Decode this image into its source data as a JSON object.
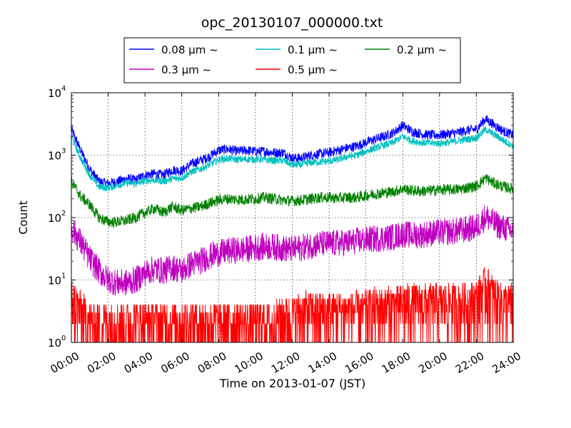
{
  "chart_data": {
    "type": "line",
    "title": "opc_20130107_000000.txt",
    "xlabel": "Time on 2013-01-07 (JST)",
    "ylabel": "Count",
    "x_ticks": [
      "00:00",
      "02:00",
      "04:00",
      "06:00",
      "08:00",
      "10:00",
      "12:00",
      "14:00",
      "16:00",
      "18:00",
      "20:00",
      "22:00",
      "24:00"
    ],
    "y_ticks": [
      {
        "base": "10",
        "exp": "0"
      },
      {
        "base": "10",
        "exp": "1"
      },
      {
        "base": "10",
        "exp": "2"
      },
      {
        "base": "10",
        "exp": "3"
      },
      {
        "base": "10",
        "exp": "4"
      }
    ],
    "xlim_hours": [
      0,
      24
    ],
    "ylim": [
      1,
      10000
    ],
    "yscale": "log",
    "grid": true,
    "legend_placement": "top-center",
    "legend_ncol": 3,
    "series": [
      {
        "name": "0.08 μm ~",
        "color": "#0000ff",
        "x": [
          0,
          0.5,
          1,
          1.5,
          2,
          2.5,
          3,
          3.5,
          4,
          4.5,
          5,
          5.5,
          6,
          6.5,
          7,
          7.5,
          8,
          8.5,
          9,
          9.5,
          10,
          10.5,
          11,
          11.5,
          12,
          12.5,
          13,
          13.5,
          14,
          14.5,
          15,
          15.5,
          16,
          16.5,
          17,
          17.5,
          18,
          18.5,
          19,
          19.5,
          20,
          20.5,
          21,
          21.5,
          22,
          22.5,
          23,
          23.5,
          24
        ],
        "values": [
          2600,
          1200,
          600,
          380,
          350,
          380,
          420,
          400,
          480,
          500,
          480,
          580,
          560,
          720,
          820,
          950,
          1200,
          1250,
          1150,
          1200,
          1150,
          1150,
          1100,
          1100,
          900,
          900,
          1000,
          1050,
          1100,
          1200,
          1300,
          1400,
          1600,
          1800,
          2000,
          2300,
          3000,
          2400,
          2200,
          2100,
          2100,
          2200,
          2300,
          2500,
          2600,
          3800,
          3000,
          2400,
          2100
        ]
      },
      {
        "name": "0.1 μm ~",
        "color": "#00bfbf",
        "x": [
          0,
          0.5,
          1,
          1.5,
          2,
          2.5,
          3,
          3.5,
          4,
          4.5,
          5,
          5.5,
          6,
          6.5,
          7,
          7.5,
          8,
          8.5,
          9,
          9.5,
          10,
          10.5,
          11,
          11.5,
          12,
          12.5,
          13,
          13.5,
          14,
          14.5,
          15,
          15.5,
          16,
          16.5,
          17,
          17.5,
          18,
          18.5,
          19,
          19.5,
          20,
          20.5,
          21,
          21.5,
          22,
          22.5,
          23,
          23.5,
          24
        ],
        "values": [
          2000,
          900,
          480,
          310,
          300,
          330,
          360,
          350,
          390,
          400,
          380,
          420,
          430,
          540,
          600,
          700,
          850,
          880,
          850,
          860,
          860,
          850,
          820,
          820,
          700,
          700,
          760,
          780,
          800,
          850,
          950,
          1000,
          1150,
          1300,
          1450,
          1600,
          2000,
          1700,
          1600,
          1550,
          1550,
          1600,
          1700,
          1800,
          1900,
          2600,
          2100,
          1700,
          1400
        ]
      },
      {
        "name": "0.2 μm ~",
        "color": "#008000",
        "x": [
          0,
          0.5,
          1,
          1.5,
          2,
          2.5,
          3,
          3.5,
          4,
          4.5,
          5,
          5.5,
          6,
          6.5,
          7,
          7.5,
          8,
          8.5,
          9,
          9.5,
          10,
          10.5,
          11,
          11.5,
          12,
          12.5,
          13,
          13.5,
          14,
          14.5,
          15,
          15.5,
          16,
          16.5,
          17,
          17.5,
          18,
          18.5,
          19,
          19.5,
          20,
          20.5,
          21,
          21.5,
          22,
          22.5,
          23,
          23.5,
          24
        ],
        "values": [
          380,
          220,
          160,
          100,
          85,
          85,
          90,
          100,
          120,
          140,
          120,
          150,
          130,
          140,
          150,
          170,
          190,
          200,
          195,
          195,
          200,
          210,
          200,
          190,
          185,
          190,
          200,
          210,
          210,
          205,
          210,
          210,
          225,
          240,
          250,
          260,
          290,
          270,
          265,
          270,
          280,
          280,
          285,
          300,
          320,
          430,
          350,
          310,
          290
        ]
      },
      {
        "name": "0.3 μm ~",
        "color": "#bf00bf",
        "x": [
          0,
          0.5,
          1,
          1.5,
          2,
          2.5,
          3,
          3.5,
          4,
          4.5,
          5,
          5.5,
          6,
          6.5,
          7,
          7.5,
          8,
          8.5,
          9,
          9.5,
          10,
          10.5,
          11,
          11.5,
          12,
          12.5,
          13,
          13.5,
          14,
          14.5,
          15,
          15.5,
          16,
          16.5,
          17,
          17.5,
          18,
          18.5,
          19,
          19.5,
          20,
          20.5,
          21,
          21.5,
          22,
          22.5,
          23,
          23.5,
          24
        ],
        "values": [
          70,
          40,
          22,
          14,
          10,
          9,
          9,
          10,
          13,
          15,
          14,
          16,
          14,
          18,
          20,
          24,
          27,
          29,
          30,
          31,
          33,
          34,
          34,
          32,
          31,
          33,
          36,
          38,
          38,
          39,
          40,
          42,
          44,
          46,
          47,
          49,
          55,
          52,
          53,
          56,
          58,
          59,
          61,
          65,
          70,
          105,
          80,
          68,
          60
        ]
      },
      {
        "name": "0.5 μm ~",
        "color": "#ff0000",
        "x": [
          0,
          0.5,
          1,
          1.5,
          2,
          2.5,
          3,
          3.5,
          4,
          4.5,
          5,
          5.5,
          6,
          6.5,
          7,
          7.5,
          8,
          8.5,
          9,
          9.5,
          10,
          10.5,
          11,
          11.5,
          12,
          12.5,
          13,
          13.5,
          14,
          14.5,
          15,
          15.5,
          16,
          16.5,
          17,
          17.5,
          18,
          18.5,
          19,
          19.5,
          20,
          20.5,
          21,
          21.5,
          22,
          22.5,
          23,
          23.5,
          24
        ],
        "values": [
          5,
          3,
          2,
          2,
          2,
          2,
          2,
          2,
          2,
          2,
          2,
          2,
          2,
          2,
          2,
          2,
          2,
          2,
          2,
          2,
          2,
          2,
          2,
          2.5,
          2.5,
          3,
          3,
          3,
          3,
          3,
          3,
          3,
          3,
          3.5,
          3.5,
          3.5,
          4,
          4,
          4,
          4,
          4,
          4,
          4,
          4,
          4.5,
          8,
          5,
          4,
          4
        ]
      }
    ]
  }
}
